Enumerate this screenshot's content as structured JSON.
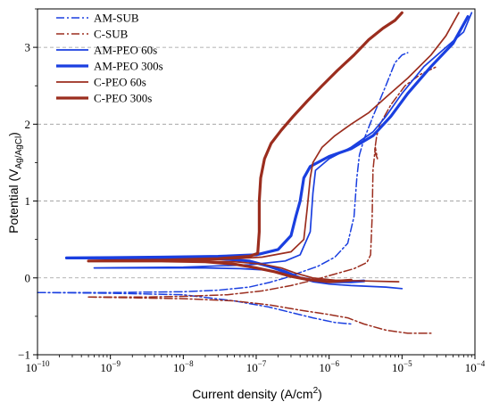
{
  "chart_data": {
    "type": "line",
    "xlabel": "Current density (A/cm",
    "xlabel_sup": "2",
    "xlabel_end": ")",
    "ylabel_prefix": "Potential (V",
    "ylabel_sub": "Ag/AgCl",
    "ylabel_end": ")",
    "x_scale": "log",
    "xlim": [
      1e-10,
      0.0001
    ],
    "ylim": [
      -1,
      3.5
    ],
    "x_ticks": [
      {
        "base": "10",
        "exp": "−10"
      },
      {
        "base": "10",
        "exp": "−9"
      },
      {
        "base": "10",
        "exp": "−8"
      },
      {
        "base": "10",
        "exp": "−7"
      },
      {
        "base": "10",
        "exp": "−6"
      },
      {
        "base": "10",
        "exp": "−5"
      },
      {
        "base": "10",
        "exp": "−4"
      }
    ],
    "y_ticks": [
      "−1",
      "0",
      "1",
      "2",
      "3"
    ],
    "grid": "horizontal dashed at 0, 1, 2, 3",
    "legend_position": "top-left",
    "series": [
      {
        "name": "AM-SUB",
        "color": "#1a3fe0",
        "style": "dashdot",
        "width": 1.5,
        "points": [
          [
            1e-10,
            -0.19
          ],
          [
            1e-09,
            -0.19
          ],
          [
            1e-08,
            -0.18
          ],
          [
            3e-08,
            -0.16
          ],
          [
            8e-08,
            -0.12
          ],
          [
            1.5e-07,
            -0.06
          ],
          [
            2.5e-07,
            0.0
          ],
          [
            4e-07,
            0.07
          ],
          [
            7e-07,
            0.15
          ],
          [
            1.2e-06,
            0.27
          ],
          [
            1.8e-06,
            0.45
          ],
          [
            2.2e-06,
            0.8
          ],
          [
            2.4e-06,
            1.3
          ],
          [
            2.6e-06,
            1.6
          ],
          [
            3e-06,
            1.8
          ],
          [
            4e-06,
            2.1
          ],
          [
            6e-06,
            2.5
          ],
          [
            8e-06,
            2.8
          ],
          [
            1e-05,
            2.9
          ],
          [
            1.2e-05,
            2.93
          ],
          null,
          [
            1e-10,
            -0.19
          ],
          [
            1e-09,
            -0.2
          ],
          [
            1e-08,
            -0.22
          ],
          [
            5e-08,
            -0.3
          ],
          [
            1.5e-07,
            -0.38
          ],
          [
            3e-07,
            -0.45
          ],
          [
            6e-07,
            -0.52
          ],
          [
            1.2e-06,
            -0.58
          ],
          [
            2e-06,
            -0.6
          ]
        ]
      },
      {
        "name": "C-SUB",
        "color": "#9b2d1e",
        "style": "dashdot",
        "width": 1.5,
        "points": [
          [
            5e-10,
            -0.25
          ],
          [
            3e-09,
            -0.25
          ],
          [
            1e-08,
            -0.24
          ],
          [
            4e-08,
            -0.22
          ],
          [
            1.2e-07,
            -0.17
          ],
          [
            3e-07,
            -0.1
          ],
          [
            6e-07,
            -0.03
          ],
          [
            1.2e-06,
            0.05
          ],
          [
            2.2e-06,
            0.12
          ],
          [
            3.3e-06,
            0.2
          ],
          [
            3.7e-06,
            0.3
          ],
          [
            3.9e-06,
            0.8
          ],
          [
            4e-06,
            1.4
          ],
          [
            4.3e-06,
            1.7
          ],
          [
            4.6e-06,
            1.55
          ],
          [
            4.2e-06,
            1.65
          ],
          [
            4.5e-06,
            1.85
          ],
          [
            5e-06,
            2.0
          ],
          [
            7e-06,
            2.25
          ],
          [
            1.1e-05,
            2.5
          ],
          [
            1.8e-05,
            2.65
          ],
          [
            3e-05,
            2.75
          ],
          null,
          [
            5e-10,
            -0.25
          ],
          [
            1e-08,
            -0.27
          ],
          [
            5e-08,
            -0.3
          ],
          [
            1.5e-07,
            -0.35
          ],
          [
            4e-07,
            -0.42
          ],
          [
            9e-07,
            -0.47
          ],
          [
            1.8e-06,
            -0.52
          ],
          [
            3e-06,
            -0.6
          ],
          [
            6e-06,
            -0.68
          ],
          [
            1.2e-05,
            -0.72
          ],
          [
            2.5e-05,
            -0.72
          ]
        ]
      },
      {
        "name": "AM-PEO 60s",
        "color": "#1a3fe0",
        "style": "solid",
        "width": 1.7,
        "points": [
          [
            6e-10,
            0.13
          ],
          [
            5e-09,
            0.13
          ],
          [
            2e-08,
            0.13
          ],
          [
            6e-08,
            0.12
          ],
          [
            1.5e-07,
            0.1
          ],
          [
            2.5e-07,
            0.06
          ],
          [
            4e-07,
            0.0
          ],
          [
            6e-07,
            -0.05
          ],
          [
            1e-06,
            -0.08
          ],
          [
            2e-06,
            -0.1
          ],
          [
            6e-06,
            -0.12
          ],
          [
            1e-05,
            -0.14
          ],
          null,
          [
            6e-10,
            0.13
          ],
          [
            1e-08,
            0.14
          ],
          [
            8e-08,
            0.17
          ],
          [
            2.5e-07,
            0.22
          ],
          [
            4e-07,
            0.3
          ],
          [
            5.5e-07,
            0.6
          ],
          [
            6e-07,
            1.1
          ],
          [
            6.5e-07,
            1.4
          ],
          [
            1e-06,
            1.55
          ],
          [
            2e-06,
            1.7
          ],
          [
            4e-06,
            1.9
          ],
          [
            6e-06,
            2.1
          ],
          [
            1e-05,
            2.4
          ],
          [
            2e-05,
            2.75
          ],
          [
            4e-05,
            3.0
          ],
          [
            7e-05,
            3.2
          ],
          [
            9e-05,
            3.45
          ]
        ]
      },
      {
        "name": "AM-PEO 300s",
        "color": "#1a3fe0",
        "style": "solid",
        "width": 3.2,
        "points": [
          [
            2.5e-10,
            0.26
          ],
          [
            2e-09,
            0.26
          ],
          [
            1e-08,
            0.26
          ],
          [
            3e-08,
            0.25
          ],
          [
            8e-08,
            0.22
          ],
          [
            1.5e-07,
            0.15
          ],
          [
            2.5e-07,
            0.08
          ],
          [
            4e-07,
            0.0
          ],
          [
            6e-07,
            -0.03
          ],
          [
            1e-06,
            -0.05
          ],
          [
            2e-06,
            -0.05
          ],
          [
            3e-06,
            -0.04
          ],
          null,
          [
            2.5e-10,
            0.26
          ],
          [
            5e-09,
            0.27
          ],
          [
            3e-08,
            0.28
          ],
          [
            1e-07,
            0.3
          ],
          [
            2e-07,
            0.37
          ],
          [
            3e-07,
            0.55
          ],
          [
            3.5e-07,
            0.8
          ],
          [
            4e-07,
            1.0
          ],
          [
            4.5e-07,
            1.3
          ],
          [
            5.5e-07,
            1.45
          ],
          [
            1e-06,
            1.58
          ],
          [
            2e-06,
            1.68
          ],
          [
            4e-06,
            1.85
          ],
          [
            7e-06,
            2.1
          ],
          [
            1.2e-05,
            2.4
          ],
          [
            2.5e-05,
            2.75
          ],
          [
            5e-05,
            3.05
          ],
          [
            8e-05,
            3.4
          ]
        ]
      },
      {
        "name": "C-PEO 60s",
        "color": "#9b2d1e",
        "style": "solid",
        "width": 1.7,
        "points": [
          [
            1e-09,
            0.22
          ],
          [
            1e-08,
            0.22
          ],
          [
            5e-08,
            0.21
          ],
          [
            1.2e-07,
            0.18
          ],
          [
            2.2e-07,
            0.13
          ],
          [
            3.5e-07,
            0.06
          ],
          [
            6e-07,
            0.0
          ],
          [
            1.2e-06,
            -0.03
          ],
          [
            3e-06,
            -0.04
          ],
          [
            9e-06,
            -0.05
          ],
          null,
          [
            1e-09,
            0.22
          ],
          [
            2e-08,
            0.23
          ],
          [
            1.2e-07,
            0.27
          ],
          [
            3e-07,
            0.34
          ],
          [
            4.5e-07,
            0.5
          ],
          [
            5e-07,
            0.9
          ],
          [
            5.5e-07,
            1.3
          ],
          [
            6e-07,
            1.5
          ],
          [
            8e-07,
            1.7
          ],
          [
            1.2e-06,
            1.85
          ],
          [
            2e-06,
            2.0
          ],
          [
            3.5e-06,
            2.15
          ],
          [
            6e-06,
            2.35
          ],
          [
            1.2e-05,
            2.6
          ],
          [
            2.5e-05,
            2.9
          ],
          [
            4e-05,
            3.15
          ],
          [
            6e-05,
            3.45
          ]
        ]
      },
      {
        "name": "C-PEO 300s",
        "color": "#9b2d1e",
        "style": "solid",
        "width": 3.2,
        "points": [
          [
            5e-10,
            0.22
          ],
          [
            5e-09,
            0.22
          ],
          [
            2e-08,
            0.21
          ],
          [
            5e-08,
            0.18
          ],
          [
            1e-07,
            0.13
          ],
          [
            1.8e-07,
            0.08
          ],
          [
            3e-07,
            0.02
          ],
          [
            5e-07,
            -0.02
          ],
          [
            1e-06,
            -0.05
          ],
          [
            2e-06,
            -0.03
          ],
          null,
          [
            5e-10,
            0.22
          ],
          [
            5e-09,
            0.23
          ],
          [
            3e-08,
            0.25
          ],
          [
            8e-08,
            0.28
          ],
          [
            1.05e-07,
            0.32
          ],
          [
            1.1e-07,
            0.6
          ],
          [
            1.1e-07,
            1.0
          ],
          [
            1.15e-07,
            1.3
          ],
          [
            1.3e-07,
            1.55
          ],
          [
            1.6e-07,
            1.75
          ],
          [
            2.2e-07,
            1.92
          ],
          [
            3.2e-07,
            2.1
          ],
          [
            5e-07,
            2.3
          ],
          [
            8e-07,
            2.5
          ],
          [
            1.3e-06,
            2.7
          ],
          [
            2.2e-06,
            2.9
          ],
          [
            3.5e-06,
            3.1
          ],
          [
            5.5e-06,
            3.25
          ],
          [
            8e-06,
            3.35
          ],
          [
            1e-05,
            3.45
          ]
        ]
      }
    ]
  }
}
